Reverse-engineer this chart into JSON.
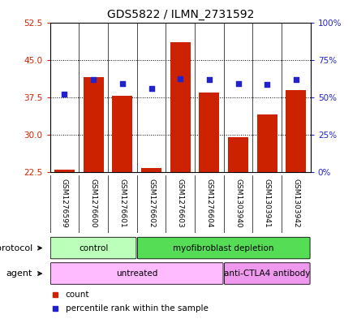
{
  "title": "GDS5822 / ILMN_2731592",
  "samples": [
    "GSM1276599",
    "GSM1276600",
    "GSM1276601",
    "GSM1276602",
    "GSM1276603",
    "GSM1276604",
    "GSM1303940",
    "GSM1303941",
    "GSM1303942"
  ],
  "bar_values": [
    23.0,
    41.5,
    37.8,
    23.3,
    48.5,
    38.5,
    29.5,
    34.0,
    39.0
  ],
  "percentile_values": [
    52.0,
    62.0,
    59.0,
    56.0,
    62.5,
    62.0,
    59.0,
    58.5,
    62.0
  ],
  "bar_color": "#cc2200",
  "dot_color": "#2222cc",
  "ylim_left": [
    22.5,
    52.5
  ],
  "ylim_right": [
    0,
    100
  ],
  "yticks_left": [
    22.5,
    30.0,
    37.5,
    45.0,
    52.5
  ],
  "yticks_right": [
    0,
    25,
    50,
    75,
    100
  ],
  "ytick_labels_right": [
    "0%",
    "25%",
    "50%",
    "75%",
    "100%"
  ],
  "protocol_groups": [
    {
      "label": "control",
      "start": 0,
      "end": 3,
      "color": "#bbffbb"
    },
    {
      "label": "myofibroblast depletion",
      "start": 3,
      "end": 9,
      "color": "#55dd55"
    }
  ],
  "agent_groups": [
    {
      "label": "untreated",
      "start": 0,
      "end": 6,
      "color": "#ffbbff"
    },
    {
      "label": "anti-CTLA4 antibody",
      "start": 6,
      "end": 9,
      "color": "#ee99ee"
    }
  ],
  "legend_items": [
    {
      "label": "count",
      "color": "#cc2200",
      "marker": "s"
    },
    {
      "label": "percentile rank within the sample",
      "color": "#2222cc",
      "marker": "s"
    }
  ],
  "grid_color": "black",
  "grid_style": "dotted",
  "bar_bottom": 22.5,
  "xlabels_bg": "#cccccc",
  "fig_bg": "#ffffff"
}
